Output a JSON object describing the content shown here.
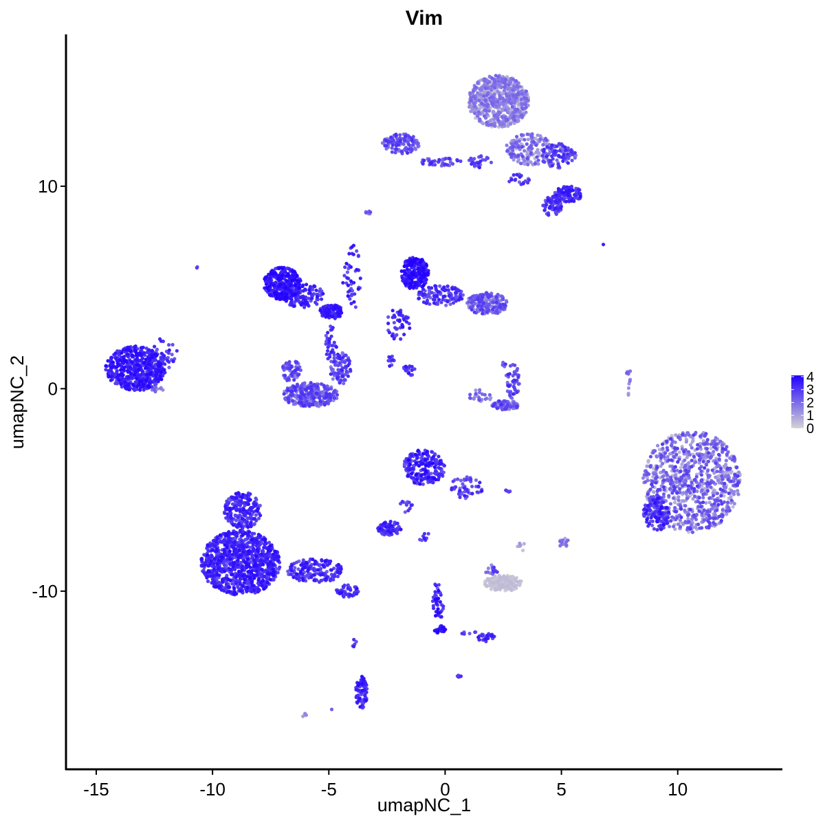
{
  "chart_data": {
    "type": "scatter",
    "title": "Vim",
    "xlabel": "umapNC_1",
    "ylabel": "umapNC_2",
    "xlim": [
      -16.3,
      14.5
    ],
    "ylim": [
      -18.8,
      17.5
    ],
    "x_ticks": [
      -15,
      -10,
      -5,
      0,
      5,
      10
    ],
    "x_tick_labels": [
      "-15",
      "-10",
      "-5",
      "0",
      "5",
      "10"
    ],
    "y_ticks": [
      -10,
      0,
      10
    ],
    "y_tick_labels": [
      "-10",
      "0",
      "10"
    ],
    "color_scale": {
      "low": "#d3d3d3",
      "high": "#2200ff",
      "min": 0,
      "max": 4.1
    },
    "legend": {
      "position": "right",
      "ticks": [
        0,
        1,
        2,
        3,
        4
      ],
      "tick_labels": [
        "0",
        "1",
        "2",
        "3",
        "4"
      ]
    },
    "grid": false,
    "clusters": [
      {
        "cx": -13.3,
        "cy": 1.0,
        "rx": 1.3,
        "ry": 1.1,
        "n": 550,
        "expr": [
          2.6,
          4.0
        ]
      },
      {
        "cx": -12.1,
        "cy": 1.6,
        "rx": 0.6,
        "ry": 0.9,
        "n": 40,
        "expr": [
          2.2,
          3.6
        ]
      },
      {
        "cx": -12.4,
        "cy": 0.0,
        "rx": 0.3,
        "ry": 0.15,
        "n": 12,
        "expr": [
          1.2,
          2.4
        ]
      },
      {
        "cx": -10.6,
        "cy": 6.0,
        "rx": 0.08,
        "ry": 0.08,
        "n": 3,
        "expr": [
          2.0,
          3.0
        ]
      },
      {
        "cx": -7.0,
        "cy": 5.2,
        "rx": 0.8,
        "ry": 0.8,
        "n": 320,
        "expr": [
          2.8,
          4.1
        ]
      },
      {
        "cx": -6.1,
        "cy": 4.6,
        "rx": 0.9,
        "ry": 0.6,
        "n": 120,
        "expr": [
          2.4,
          3.8
        ]
      },
      {
        "cx": -4.9,
        "cy": 3.8,
        "rx": 0.5,
        "ry": 0.35,
        "n": 110,
        "expr": [
          2.6,
          3.9
        ]
      },
      {
        "cx": -4.0,
        "cy": 5.5,
        "rx": 0.4,
        "ry": 1.6,
        "n": 45,
        "expr": [
          2.4,
          3.8
        ]
      },
      {
        "cx": -4.9,
        "cy": 2.2,
        "rx": 0.25,
        "ry": 0.9,
        "n": 30,
        "expr": [
          2.2,
          3.6
        ]
      },
      {
        "cx": -5.8,
        "cy": -0.3,
        "rx": 1.2,
        "ry": 0.6,
        "n": 300,
        "expr": [
          1.2,
          3.2
        ]
      },
      {
        "cx": -6.6,
        "cy": 0.9,
        "rx": 0.4,
        "ry": 0.6,
        "n": 60,
        "expr": [
          1.4,
          3.2
        ]
      },
      {
        "cx": -4.5,
        "cy": 1.0,
        "rx": 0.45,
        "ry": 0.8,
        "n": 80,
        "expr": [
          1.6,
          3.4
        ]
      },
      {
        "cx": -3.3,
        "cy": 8.7,
        "rx": 0.12,
        "ry": 0.12,
        "n": 8,
        "expr": [
          1.4,
          2.6
        ]
      },
      {
        "cx": -1.3,
        "cy": 5.7,
        "rx": 0.6,
        "ry": 0.8,
        "n": 230,
        "expr": [
          3.0,
          4.1
        ]
      },
      {
        "cx": -0.2,
        "cy": 4.6,
        "rx": 1.0,
        "ry": 0.5,
        "n": 110,
        "expr": [
          2.0,
          3.6
        ]
      },
      {
        "cx": 1.8,
        "cy": 4.2,
        "rx": 0.9,
        "ry": 0.55,
        "n": 210,
        "expr": [
          1.0,
          3.0
        ]
      },
      {
        "cx": -2.0,
        "cy": 3.2,
        "rx": 0.5,
        "ry": 0.8,
        "n": 45,
        "expr": [
          2.4,
          3.8
        ]
      },
      {
        "cx": -2.3,
        "cy": 1.4,
        "rx": 0.15,
        "ry": 0.4,
        "n": 10,
        "expr": [
          2.4,
          3.6
        ]
      },
      {
        "cx": -1.6,
        "cy": 1.0,
        "rx": 0.15,
        "ry": 0.15,
        "n": 6,
        "expr": [
          2.4,
          3.6
        ]
      },
      {
        "cx": -1.5,
        "cy": 0.9,
        "rx": 0.4,
        "ry": 0.25,
        "n": 16,
        "expr": [
          2.4,
          3.8
        ]
      },
      {
        "cx": -1.9,
        "cy": 12.1,
        "rx": 0.8,
        "ry": 0.5,
        "n": 110,
        "expr": [
          1.5,
          3.2
        ]
      },
      {
        "cx": -0.2,
        "cy": 11.2,
        "rx": 0.9,
        "ry": 0.2,
        "n": 40,
        "expr": [
          1.6,
          3.4
        ]
      },
      {
        "cx": 1.5,
        "cy": 11.2,
        "rx": 0.5,
        "ry": 0.3,
        "n": 30,
        "expr": [
          1.6,
          3.4
        ]
      },
      {
        "cx": 2.3,
        "cy": 14.2,
        "rx": 1.3,
        "ry": 1.3,
        "n": 700,
        "expr": [
          0.0,
          2.2
        ]
      },
      {
        "cx": 3.6,
        "cy": 11.8,
        "rx": 1.0,
        "ry": 0.8,
        "n": 170,
        "expr": [
          0.4,
          2.6
        ]
      },
      {
        "cx": 4.9,
        "cy": 11.5,
        "rx": 0.8,
        "ry": 0.6,
        "n": 100,
        "expr": [
          1.4,
          3.4
        ]
      },
      {
        "cx": 5.3,
        "cy": 9.6,
        "rx": 0.6,
        "ry": 0.4,
        "n": 100,
        "expr": [
          2.2,
          3.8
        ]
      },
      {
        "cx": 4.6,
        "cy": 9.0,
        "rx": 0.4,
        "ry": 0.5,
        "n": 70,
        "expr": [
          2.0,
          3.6
        ]
      },
      {
        "cx": 3.2,
        "cy": 10.3,
        "rx": 0.5,
        "ry": 0.3,
        "n": 20,
        "expr": [
          1.8,
          3.4
        ]
      },
      {
        "cx": 6.8,
        "cy": 7.1,
        "rx": 0.05,
        "ry": 0.05,
        "n": 1,
        "expr": [
          3.2,
          3.6
        ]
      },
      {
        "cx": 2.9,
        "cy": 0.4,
        "rx": 0.3,
        "ry": 0.9,
        "n": 45,
        "expr": [
          1.8,
          3.4
        ]
      },
      {
        "cx": 2.6,
        "cy": -0.8,
        "rx": 0.6,
        "ry": 0.25,
        "n": 70,
        "expr": [
          1.4,
          3.2
        ]
      },
      {
        "cx": 1.5,
        "cy": -0.4,
        "rx": 0.5,
        "ry": 0.35,
        "n": 25,
        "expr": [
          1.0,
          2.6
        ]
      },
      {
        "cx": 2.5,
        "cy": 1.2,
        "rx": 0.1,
        "ry": 0.15,
        "n": 4,
        "expr": [
          1.8,
          3.2
        ]
      },
      {
        "cx": 7.9,
        "cy": 0.3,
        "rx": 0.12,
        "ry": 0.8,
        "n": 12,
        "expr": [
          0.8,
          2.4
        ]
      },
      {
        "cx": 10.6,
        "cy": -4.6,
        "rx": 2.1,
        "ry": 2.5,
        "n": 900,
        "expr": [
          0.3,
          3.0
        ]
      },
      {
        "cx": 9.1,
        "cy": -6.2,
        "rx": 0.6,
        "ry": 0.8,
        "n": 120,
        "expr": [
          2.0,
          3.8
        ]
      },
      {
        "cx": -0.9,
        "cy": -3.9,
        "rx": 0.9,
        "ry": 0.9,
        "n": 220,
        "expr": [
          2.2,
          4.0
        ]
      },
      {
        "cx": 0.9,
        "cy": -4.9,
        "rx": 0.7,
        "ry": 0.6,
        "n": 50,
        "expr": [
          1.8,
          3.6
        ]
      },
      {
        "cx": 2.7,
        "cy": -5.0,
        "rx": 0.15,
        "ry": 0.1,
        "n": 6,
        "expr": [
          1.6,
          3.0
        ]
      },
      {
        "cx": -2.4,
        "cy": -6.9,
        "rx": 0.5,
        "ry": 0.35,
        "n": 80,
        "expr": [
          2.2,
          3.8
        ]
      },
      {
        "cx": -1.7,
        "cy": -5.8,
        "rx": 0.3,
        "ry": 0.3,
        "n": 12,
        "expr": [
          2.0,
          3.4
        ]
      },
      {
        "cx": -0.9,
        "cy": -7.3,
        "rx": 0.3,
        "ry": 0.2,
        "n": 8,
        "expr": [
          2.0,
          3.6
        ]
      },
      {
        "cx": 2.5,
        "cy": -9.6,
        "rx": 0.8,
        "ry": 0.4,
        "n": 170,
        "expr": [
          0.0,
          0.5
        ]
      },
      {
        "cx": 2.0,
        "cy": -9.0,
        "rx": 0.3,
        "ry": 0.3,
        "n": 15,
        "expr": [
          1.2,
          3.2
        ]
      },
      {
        "cx": 3.3,
        "cy": -7.8,
        "rx": 0.2,
        "ry": 0.2,
        "n": 8,
        "expr": [
          0.2,
          1.2
        ]
      },
      {
        "cx": 5.1,
        "cy": -7.6,
        "rx": 0.2,
        "ry": 0.4,
        "n": 12,
        "expr": [
          0.6,
          2.4
        ]
      },
      {
        "cx": -8.8,
        "cy": -8.6,
        "rx": 1.7,
        "ry": 1.6,
        "n": 950,
        "expr": [
          2.4,
          3.9
        ]
      },
      {
        "cx": -8.7,
        "cy": -6.0,
        "rx": 0.8,
        "ry": 0.9,
        "n": 200,
        "expr": [
          2.4,
          3.8
        ]
      },
      {
        "cx": -5.6,
        "cy": -9.0,
        "rx": 1.2,
        "ry": 0.6,
        "n": 170,
        "expr": [
          2.2,
          3.8
        ]
      },
      {
        "cx": -4.2,
        "cy": -10.0,
        "rx": 0.5,
        "ry": 0.3,
        "n": 45,
        "expr": [
          2.2,
          3.8
        ]
      },
      {
        "cx": -0.3,
        "cy": -10.5,
        "rx": 0.25,
        "ry": 1.0,
        "n": 40,
        "expr": [
          2.4,
          4.1
        ]
      },
      {
        "cx": -0.2,
        "cy": -11.9,
        "rx": 0.3,
        "ry": 0.2,
        "n": 25,
        "expr": [
          3.0,
          4.1
        ]
      },
      {
        "cx": 1.8,
        "cy": -12.3,
        "rx": 0.4,
        "ry": 0.2,
        "n": 25,
        "expr": [
          2.6,
          3.8
        ]
      },
      {
        "cx": 1.0,
        "cy": -12.0,
        "rx": 0.4,
        "ry": 0.15,
        "n": 6,
        "expr": [
          2.0,
          3.4
        ]
      },
      {
        "cx": 0.6,
        "cy": -14.2,
        "rx": 0.1,
        "ry": 0.1,
        "n": 5,
        "expr": [
          2.6,
          3.6
        ]
      },
      {
        "cx": -3.6,
        "cy": -15.0,
        "rx": 0.25,
        "ry": 0.8,
        "n": 70,
        "expr": [
          2.4,
          3.9
        ]
      },
      {
        "cx": -3.9,
        "cy": -12.5,
        "rx": 0.08,
        "ry": 0.4,
        "n": 5,
        "expr": [
          2.4,
          3.6
        ]
      },
      {
        "cx": -6.1,
        "cy": -16.1,
        "rx": 0.15,
        "ry": 0.1,
        "n": 4,
        "expr": [
          0.6,
          1.6
        ]
      },
      {
        "cx": -4.9,
        "cy": -15.8,
        "rx": 0.05,
        "ry": 0.05,
        "n": 1,
        "expr": [
          2.0,
          2.4
        ]
      }
    ]
  }
}
